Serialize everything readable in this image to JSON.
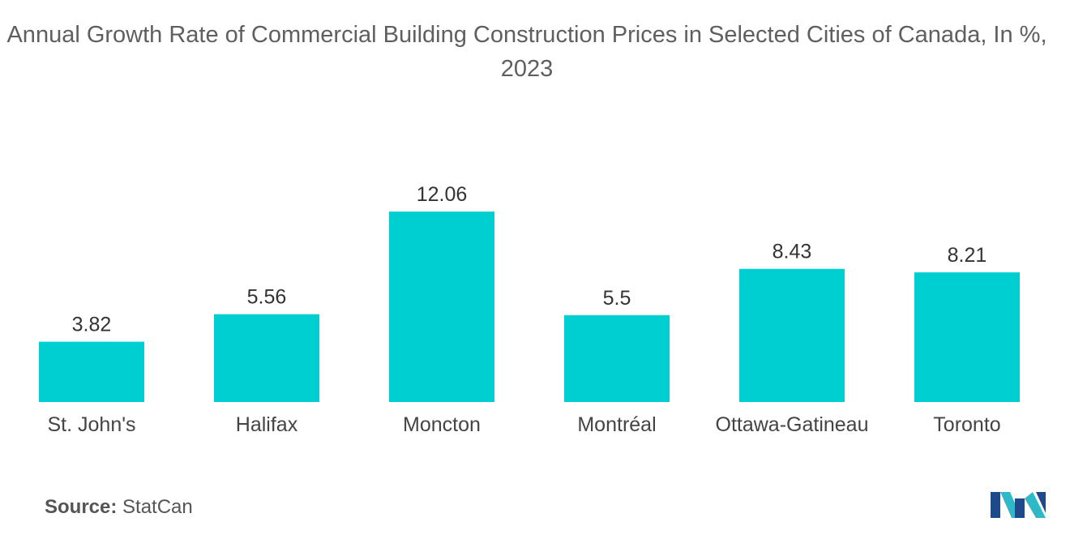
{
  "chart_data": {
    "type": "bar",
    "title": "Annual Growth Rate of Commercial Building Construction Prices in Selected Cities of Canada, In %, 2023",
    "categories": [
      "St. John's",
      "Halifax",
      "Moncton",
      "Montréal",
      "Ottawa-Gatineau",
      "Toronto"
    ],
    "values": [
      3.82,
      5.56,
      12.06,
      5.5,
      8.43,
      8.21
    ],
    "value_labels": [
      "3.82",
      "5.56",
      "12.06",
      "5.5",
      "8.43",
      "8.21"
    ],
    "xlabel": "",
    "ylabel": "",
    "ylim": [
      0,
      12.06
    ],
    "grid": false,
    "legend": "none",
    "bar_color": "#00cfd1"
  },
  "source": {
    "label": "Source:",
    "value": "StatCan"
  },
  "logo": {
    "icon": "mordor-intelligence-logo-icon",
    "colors": [
      "#1e4a8c",
      "#2fb8c8"
    ]
  }
}
